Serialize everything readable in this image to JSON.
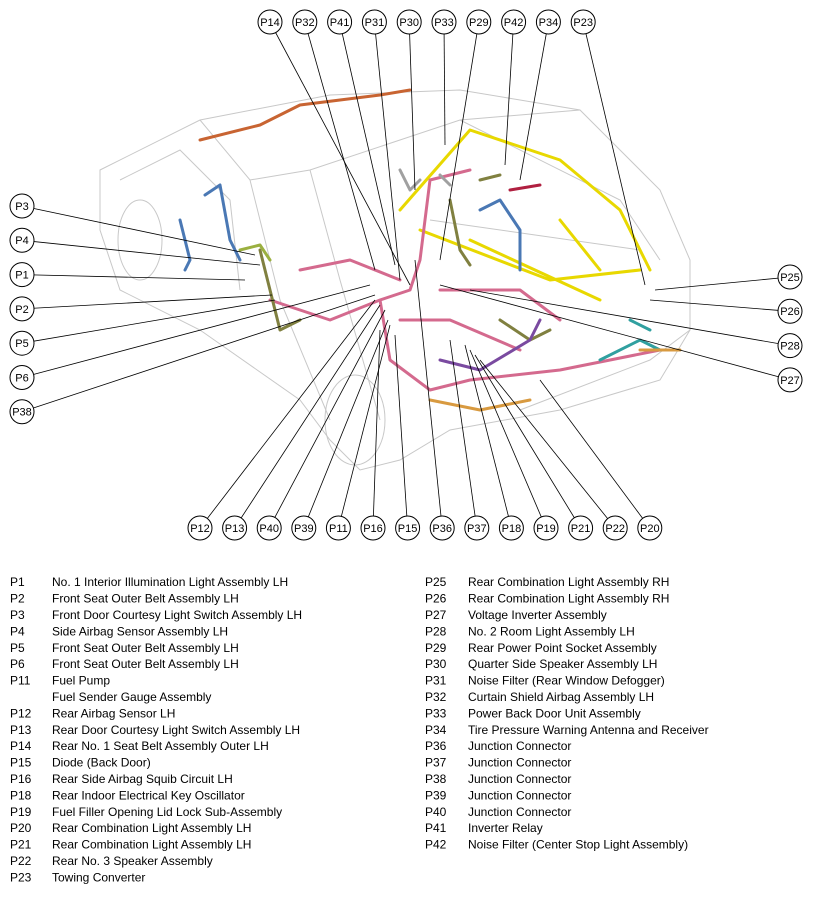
{
  "callouts": {
    "top": [
      "P14",
      "P32",
      "P41",
      "P31",
      "P30",
      "P33",
      "P29",
      "P42",
      "P34",
      "P23"
    ],
    "left": [
      "P3",
      "P4",
      "P1",
      "P2",
      "P5",
      "P6",
      "P38"
    ],
    "right": [
      "P25",
      "P26",
      "P28",
      "P27"
    ],
    "bottom": [
      "P12",
      "P13",
      "P40",
      "P39",
      "P11",
      "P16",
      "P15",
      "P36",
      "P37",
      "P18",
      "P19",
      "P21",
      "P22",
      "P20"
    ]
  },
  "legend": {
    "left": [
      {
        "code": "P1",
        "desc": [
          "No. 1 Interior Illumination Light Assembly LH"
        ]
      },
      {
        "code": "P2",
        "desc": [
          "Front Seat Outer Belt Assembly LH"
        ]
      },
      {
        "code": "P3",
        "desc": [
          "Front Door Courtesy Light Switch Assembly LH"
        ]
      },
      {
        "code": "P4",
        "desc": [
          "Side Airbag Sensor Assembly LH"
        ]
      },
      {
        "code": "P5",
        "desc": [
          "Front Seat Outer Belt Assembly LH"
        ]
      },
      {
        "code": "P6",
        "desc": [
          "Front Seat Outer Belt Assembly LH"
        ]
      },
      {
        "code": "P11",
        "desc": [
          "Fuel Pump",
          "Fuel Sender Gauge Assembly"
        ]
      },
      {
        "code": "P12",
        "desc": [
          "Rear Airbag Sensor LH"
        ]
      },
      {
        "code": "P13",
        "desc": [
          "Rear Door Courtesy Light Switch Assembly LH"
        ]
      },
      {
        "code": "P14",
        "desc": [
          "Rear No. 1 Seat Belt Assembly Outer LH"
        ]
      },
      {
        "code": "P15",
        "desc": [
          "Diode (Back Door)"
        ]
      },
      {
        "code": "P16",
        "desc": [
          "Rear Side Airbag Squib Circuit LH"
        ]
      },
      {
        "code": "P18",
        "desc": [
          "Rear Indoor Electrical Key Oscillator"
        ]
      },
      {
        "code": "P19",
        "desc": [
          "Fuel Filler Opening Lid Lock Sub-Assembly"
        ]
      },
      {
        "code": "P20",
        "desc": [
          "Rear Combination Light Assembly LH"
        ]
      },
      {
        "code": "P21",
        "desc": [
          "Rear Combination Light Assembly LH"
        ]
      },
      {
        "code": "P22",
        "desc": [
          "Rear No. 3 Speaker Assembly"
        ]
      },
      {
        "code": "P23",
        "desc": [
          "Towing Converter"
        ]
      }
    ],
    "right": [
      {
        "code": "P25",
        "desc": [
          "Rear Combination Light Assembly RH"
        ]
      },
      {
        "code": "P26",
        "desc": [
          "Rear Combination Light Assembly RH"
        ]
      },
      {
        "code": "P27",
        "desc": [
          "Voltage Inverter Assembly"
        ]
      },
      {
        "code": "P28",
        "desc": [
          "No. 2 Room Light Assembly LH"
        ]
      },
      {
        "code": "P29",
        "desc": [
          "Rear Power Point Socket Assembly"
        ]
      },
      {
        "code": "P30",
        "desc": [
          "Quarter Side Speaker Assembly LH"
        ]
      },
      {
        "code": "P31",
        "desc": [
          "Noise Filter (Rear Window Defogger)"
        ]
      },
      {
        "code": "P32",
        "desc": [
          "Curtain Shield Airbag Assembly LH"
        ]
      },
      {
        "code": "P33",
        "desc": [
          "Power Back Door Unit Assembly"
        ]
      },
      {
        "code": "P34",
        "desc": [
          "Tire Pressure Warning Antenna and Receiver"
        ]
      },
      {
        "code": "P36",
        "desc": [
          "Junction Connector"
        ]
      },
      {
        "code": "P37",
        "desc": [
          "Junction Connector"
        ]
      },
      {
        "code": "P38",
        "desc": [
          "Junction Connector"
        ]
      },
      {
        "code": "P39",
        "desc": [
          "Junction Connector"
        ]
      },
      {
        "code": "P40",
        "desc": [
          "Junction Connector"
        ]
      },
      {
        "code": "P41",
        "desc": [
          "Inverter Relay"
        ]
      },
      {
        "code": "P42",
        "desc": [
          "Noise Filter (Center Stop Light Assembly)"
        ]
      }
    ]
  }
}
